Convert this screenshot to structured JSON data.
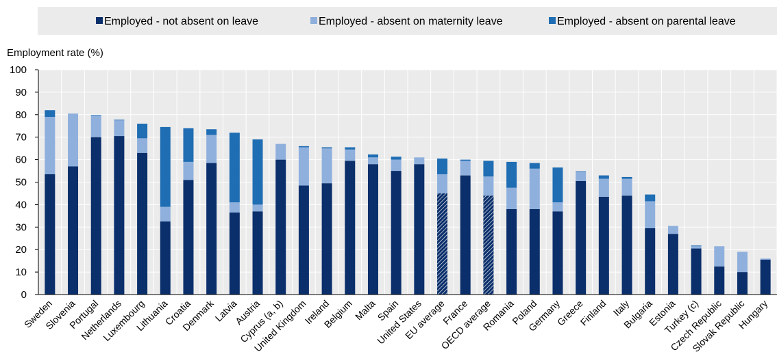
{
  "chart_data": {
    "type": "bar",
    "stacked": true,
    "ylabel": "Employment rate (%)",
    "ylim": [
      0,
      100
    ],
    "yticks": [
      0,
      10,
      20,
      30,
      40,
      50,
      60,
      70,
      80,
      90,
      100
    ],
    "grid": true,
    "legend_position": "top",
    "categories": [
      "Sweden",
      "Slovenia",
      "Portugal",
      "Netherlands",
      "Luxembourg",
      "Lithuania",
      "Croatia",
      "Denmark",
      "Latvia",
      "Austria",
      "Cyprus (a, b)",
      "United Kingdom",
      "Ireland",
      "Belgium",
      "Malta",
      "Spain",
      "United States",
      "EU average",
      "France",
      "OECD average",
      "Romania",
      "Poland",
      "Germany",
      "Greece",
      "Finland",
      "Italy",
      "Bulgaria",
      "Estonia",
      "Turkey (c)",
      "Czech Republic",
      "Slovak Republic",
      "Hungary"
    ],
    "highlighted_categories": [
      "EU average",
      "OECD average"
    ],
    "series": [
      {
        "name": "Employed - not absent on leave",
        "color": "#0b2f6b",
        "values": [
          53.5,
          57,
          70,
          70.5,
          63,
          32.5,
          51,
          58.5,
          36.5,
          37,
          60,
          48.5,
          49.5,
          59.5,
          58,
          55,
          58,
          45,
          53,
          44,
          38,
          38,
          37,
          50.5,
          43.5,
          44,
          29.5,
          27,
          20.5,
          12.5,
          10,
          15.5
        ]
      },
      {
        "name": "Employed - absent on maternity leave",
        "color": "#8fb0dd",
        "values": [
          25.5,
          23.5,
          9.5,
          7,
          6.5,
          6.5,
          8,
          12.5,
          4.5,
          3,
          7,
          17,
          15.5,
          5,
          3,
          5,
          3,
          8.5,
          6.5,
          8.5,
          9.5,
          18,
          4,
          4,
          8,
          7.5,
          12,
          3.5,
          1,
          9,
          9,
          0.5
        ]
      },
      {
        "name": "Employed - absent on parental leave",
        "color": "#1f6db3",
        "values": [
          3,
          0,
          0.3,
          0.3,
          6.5,
          35.5,
          15,
          2.5,
          31,
          29,
          0,
          0.5,
          0.5,
          1,
          1.3,
          1.3,
          0,
          7,
          0.5,
          7,
          11.5,
          2.5,
          15.5,
          0.3,
          1.5,
          0.8,
          3,
          0,
          0.3,
          0,
          0,
          0
        ]
      }
    ]
  }
}
